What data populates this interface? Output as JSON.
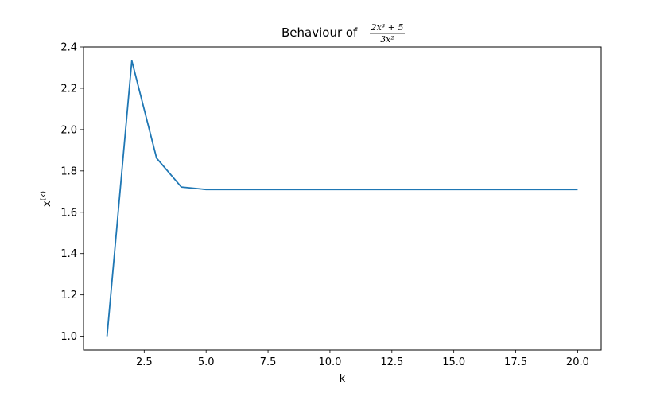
{
  "chart_data": {
    "type": "line",
    "title_prefix": "Behaviour of",
    "title_numerator": "2x³ + 5",
    "title_denominator": "3x²",
    "xlabel": "k",
    "ylabel": "x(k)",
    "xlim": [
      0.05,
      20.95
    ],
    "ylim": [
      0.933,
      2.4
    ],
    "xticks": [
      2.5,
      5.0,
      7.5,
      10.0,
      12.5,
      15.0,
      17.5,
      20.0
    ],
    "xtick_labels": [
      "2.5",
      "5.0",
      "7.5",
      "10.0",
      "12.5",
      "15.0",
      "17.5",
      "20.0"
    ],
    "yticks": [
      1.0,
      1.2,
      1.4,
      1.6,
      1.8,
      2.0,
      2.2,
      2.4
    ],
    "ytick_labels": [
      "1.0",
      "1.2",
      "1.4",
      "1.6",
      "1.8",
      "2.0",
      "2.2",
      "2.4"
    ],
    "grid": false,
    "line_color": "#1f77b4",
    "series": [
      {
        "x": [
          1,
          2,
          3,
          4,
          5,
          6,
          7,
          8,
          9,
          10,
          11,
          12,
          13,
          14,
          15,
          16,
          17,
          18,
          19,
          20
        ],
        "values": [
          1.0,
          2.333,
          1.862,
          1.722,
          1.71,
          1.71,
          1.71,
          1.71,
          1.71,
          1.71,
          1.71,
          1.71,
          1.71,
          1.71,
          1.71,
          1.71,
          1.71,
          1.71,
          1.71,
          1.71
        ]
      }
    ]
  }
}
